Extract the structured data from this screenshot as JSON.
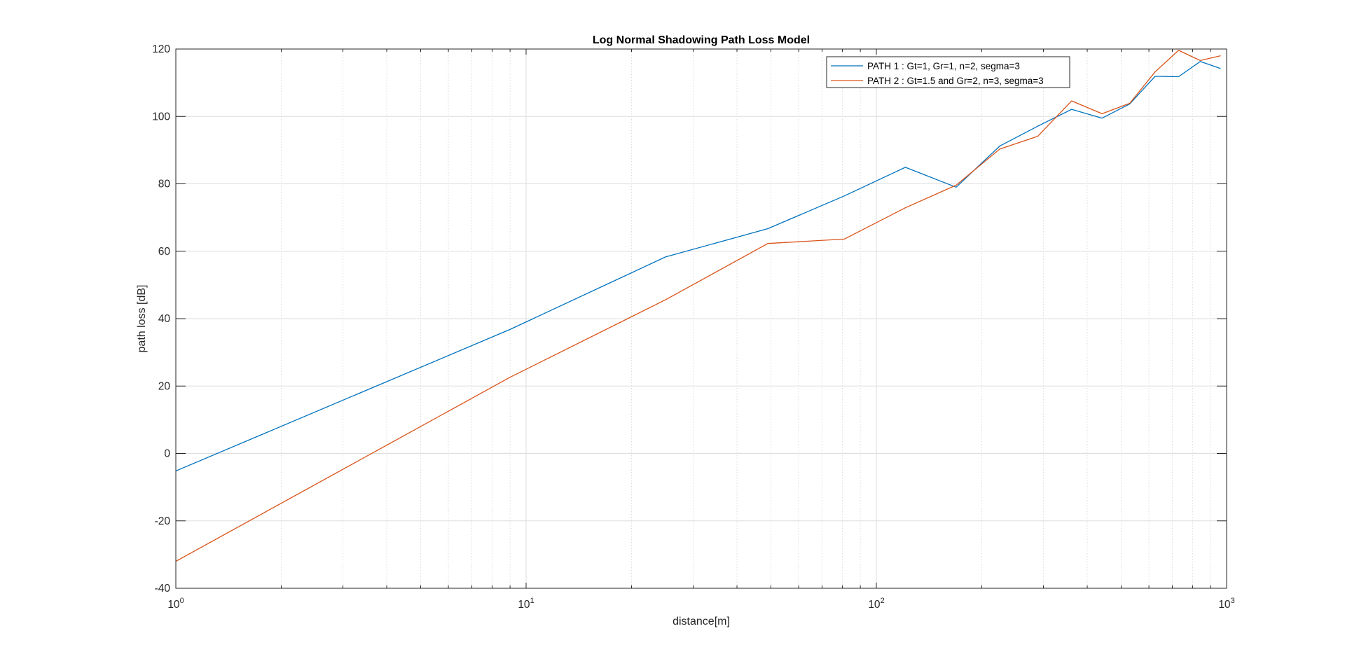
{
  "chart_data": {
    "type": "line",
    "title": "Log Normal Shadowing Path Loss Model",
    "xlabel": "distance[m]",
    "ylabel": "path loss [dB]",
    "xscale": "log",
    "xlim": [
      1,
      1000
    ],
    "ylim": [
      -40,
      120
    ],
    "grid": true,
    "legend_position": "top-right",
    "x_tick_labels": [
      {
        "base": "10",
        "exp": "0"
      },
      {
        "base": "10",
        "exp": "1"
      },
      {
        "base": "10",
        "exp": "2"
      },
      {
        "base": "10",
        "exp": "3"
      }
    ],
    "y_ticks": [
      -40,
      -20,
      0,
      20,
      40,
      60,
      80,
      100,
      120
    ],
    "series": [
      {
        "name": "PATH 1 : Gt=1, Gr=1, n=2, segma=3",
        "color": "#0072BD",
        "x": [
          1,
          9,
          25,
          49,
          81,
          121,
          169,
          225,
          289,
          361,
          441,
          529,
          625,
          729,
          841,
          961
        ],
        "y": [
          -5.2,
          36.8,
          58.3,
          66.7,
          76.4,
          84.9,
          79.0,
          91.2,
          97.1,
          102.1,
          99.5,
          103.7,
          111.9,
          111.8,
          116.3,
          114.2
        ]
      },
      {
        "name": "PATH 2 : Gt=1.5 and Gr=2, n=3, segma=3",
        "color": "#D95319",
        "x": [
          1,
          9,
          25,
          49,
          81,
          121,
          169,
          225,
          289,
          361,
          441,
          529,
          625,
          729,
          841,
          961
        ],
        "y": [
          -32.0,
          22.6,
          45.6,
          62.3,
          63.6,
          72.9,
          79.6,
          90.3,
          94.1,
          104.6,
          100.8,
          103.9,
          113.2,
          119.6,
          116.6,
          118.0
        ]
      }
    ]
  }
}
